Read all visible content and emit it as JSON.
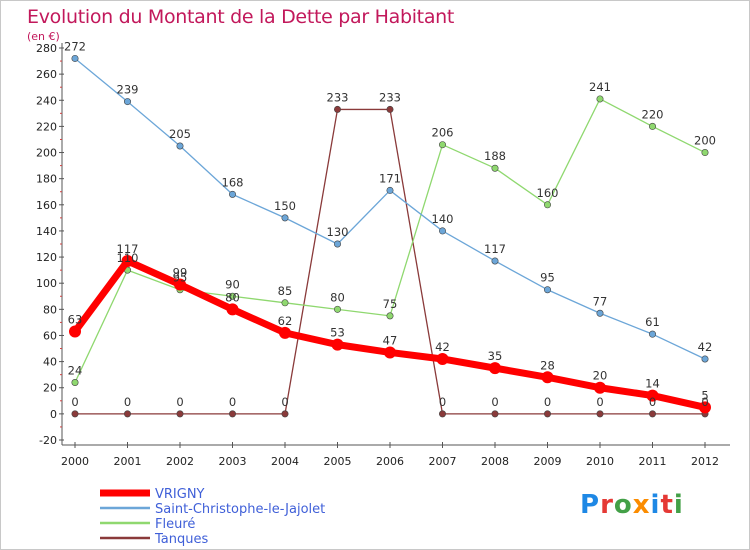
{
  "header": {
    "title": "Evolution du Montant de la Dette par Habitant",
    "unit": "(en €)"
  },
  "logo": {
    "text": "Proxiti",
    "letter_colors": [
      "#1e88e5",
      "#e53935",
      "#43a047",
      "#fb8c00",
      "#1e88e5",
      "#e53935",
      "#43a047"
    ]
  },
  "chart_data": {
    "type": "line",
    "title": "Evolution du Montant de la Dette par Habitant",
    "ylabel": "(en €)",
    "xlabel": "",
    "x": [
      "2000",
      "2001",
      "2002",
      "2003",
      "2004",
      "2005",
      "2006",
      "2007",
      "2008",
      "2009",
      "2010",
      "2011",
      "2012"
    ],
    "ylim": [
      -20,
      280
    ],
    "yticks": [
      -20,
      0,
      20,
      40,
      60,
      80,
      100,
      120,
      140,
      160,
      180,
      200,
      220,
      240,
      260,
      280
    ],
    "legend_position": "bottom-left",
    "grid": false,
    "series": [
      {
        "name": "VRIGNY",
        "color": "#ff0000",
        "width": 7,
        "values": [
          63,
          117,
          99,
          80,
          62,
          53,
          47,
          42,
          35,
          28,
          20,
          14,
          5
        ]
      },
      {
        "name": "Saint-Christophe-le-Jajolet",
        "color": "#6ca6d8",
        "width": 1.3,
        "values": [
          272,
          239,
          205,
          168,
          150,
          130,
          171,
          140,
          117,
          95,
          77,
          61,
          42
        ]
      },
      {
        "name": "Fleuré",
        "color": "#8fd86f",
        "width": 1.3,
        "values": [
          24,
          110,
          95,
          90,
          85,
          80,
          75,
          206,
          188,
          160,
          241,
          220,
          200
        ]
      },
      {
        "name": "Tanques",
        "color": "#8a3a3a",
        "width": 1.3,
        "values": [
          0,
          0,
          0,
          0,
          0,
          233,
          233,
          0,
          0,
          0,
          0,
          0,
          0
        ]
      }
    ]
  }
}
